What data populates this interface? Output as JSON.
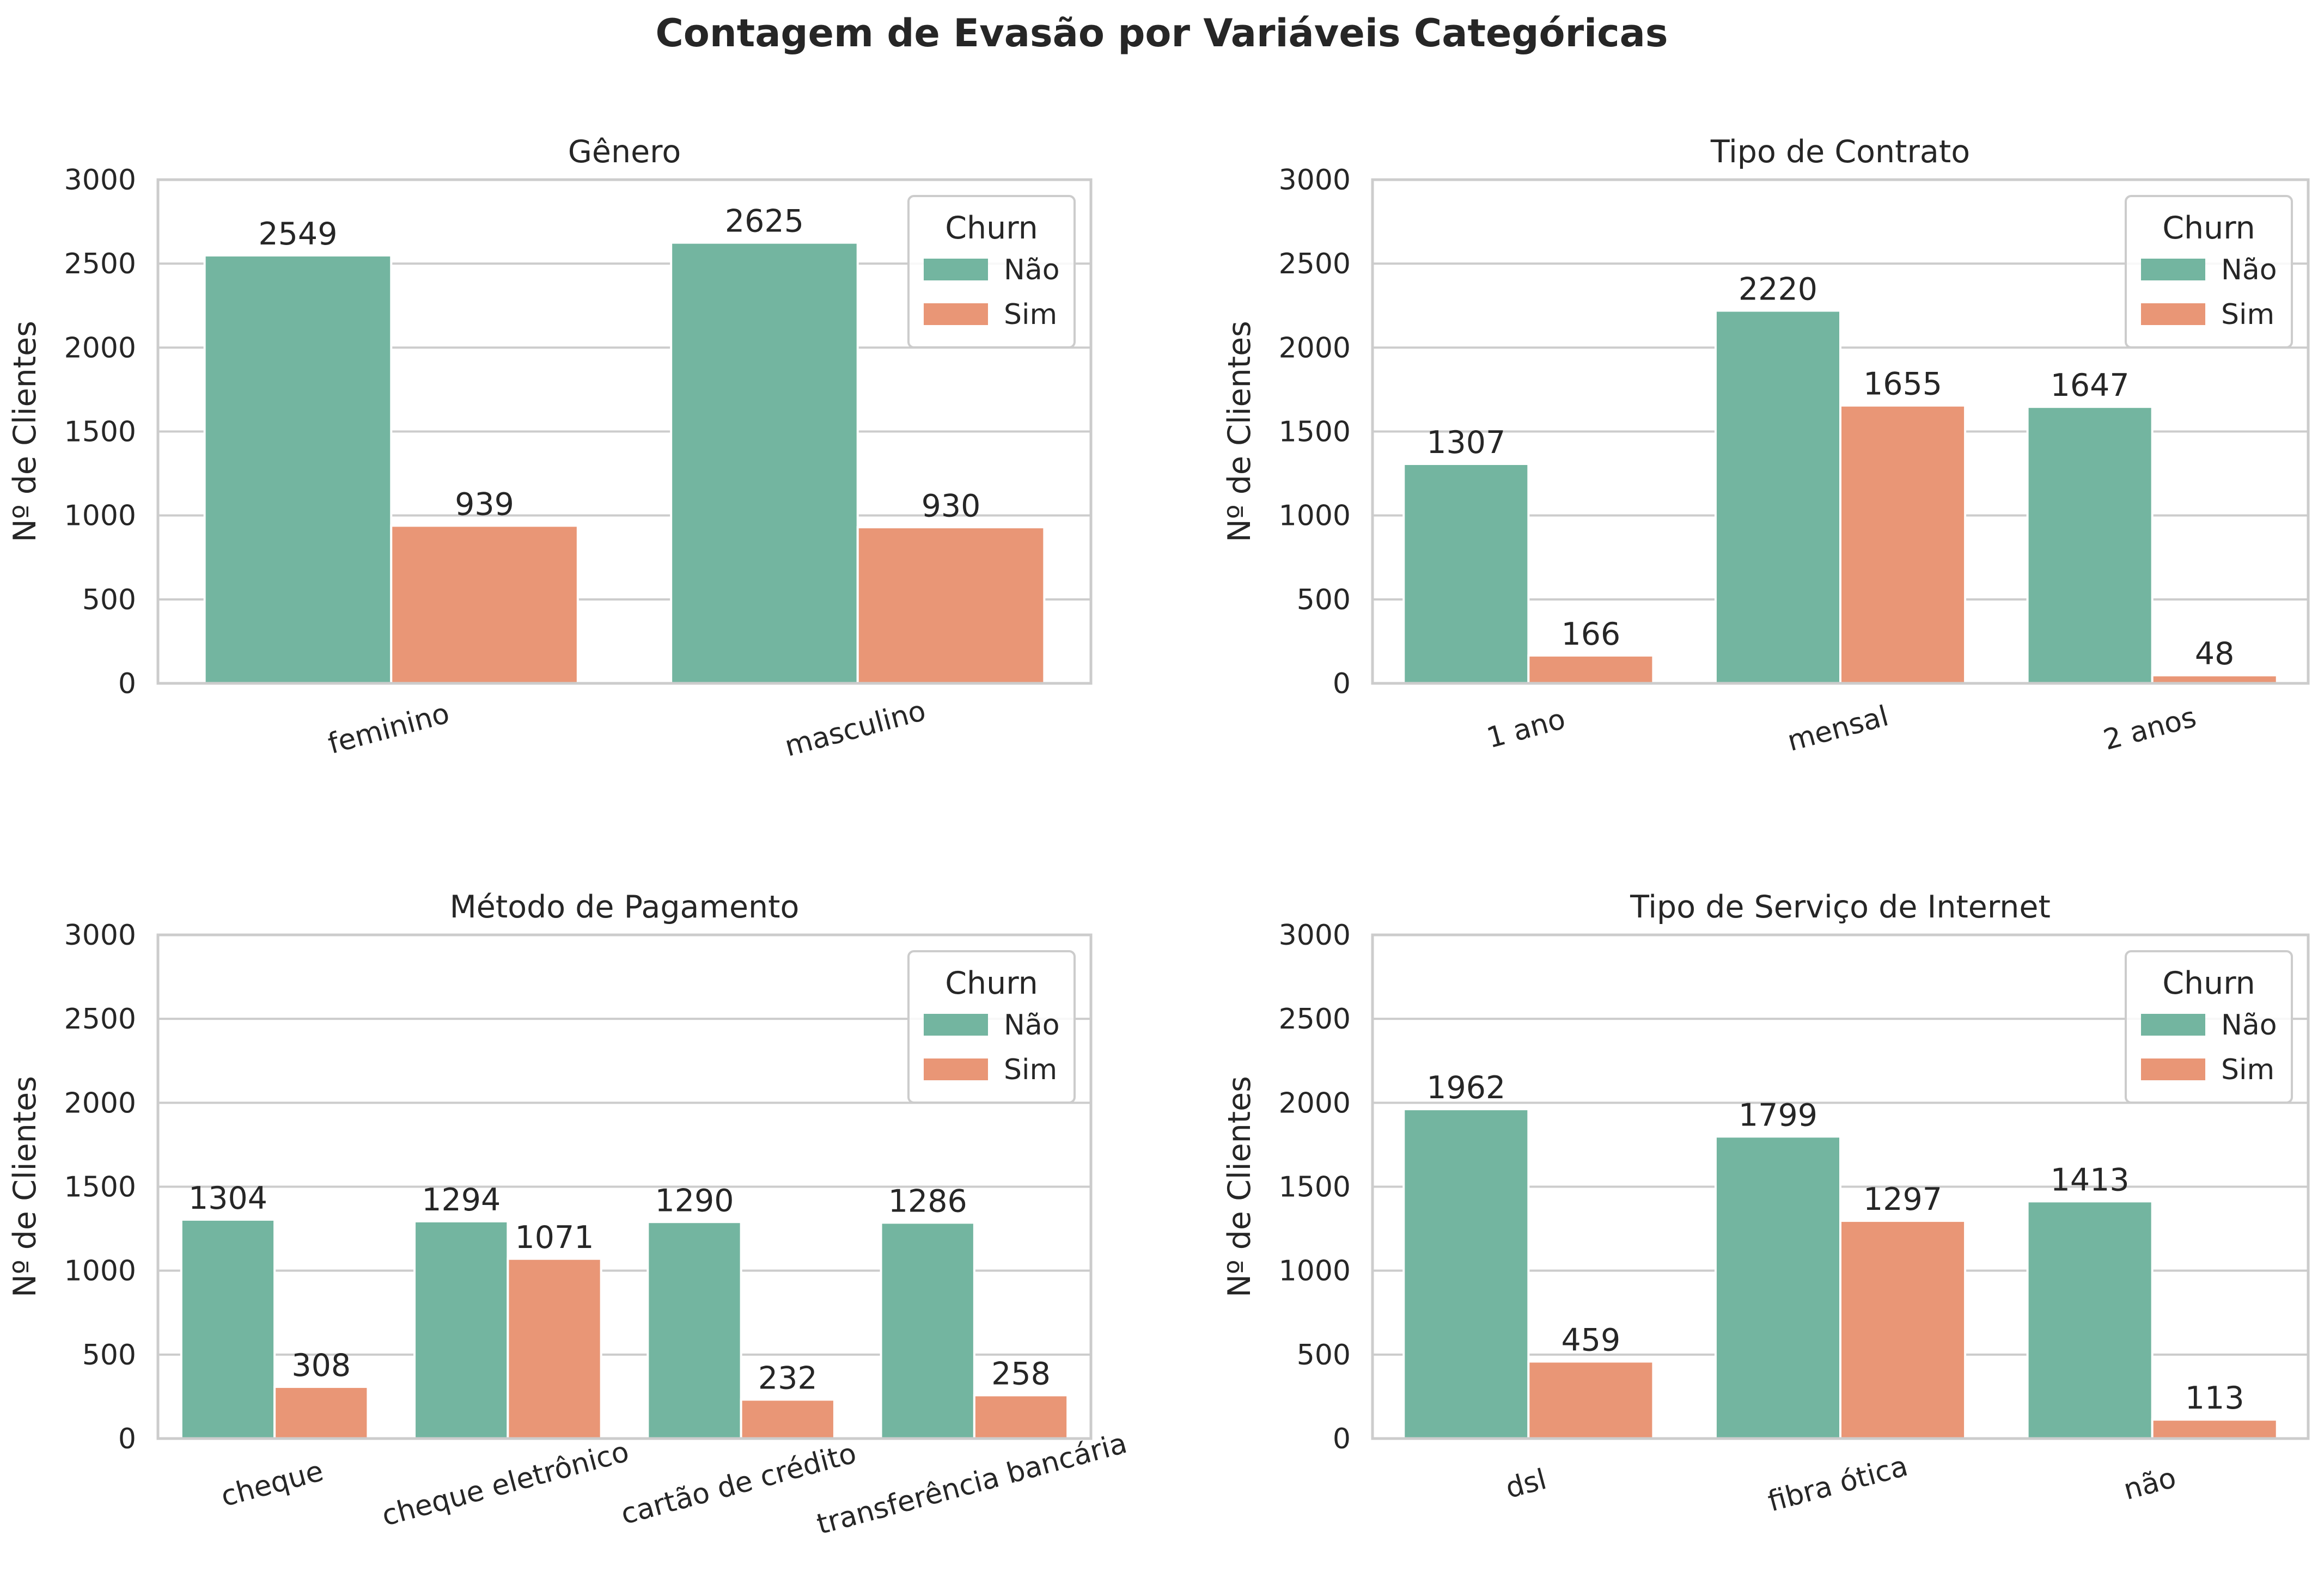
{
  "figure": {
    "title": "Contagem de Evasão por Variáveis Categóricas",
    "colors": {
      "Não": "#73b5a0",
      "Sim": "#e99676",
      "grid": "#cccccc",
      "text": "#262626"
    }
  },
  "chart_data": [
    {
      "type": "bar",
      "title": "Gênero",
      "xlabel": "",
      "ylabel": "Nº de Clientes",
      "ylim": [
        0,
        3000
      ],
      "yticks": [
        "0",
        "500",
        "1000",
        "1500",
        "2000",
        "2500",
        "3000"
      ],
      "categories": [
        "feminino",
        "masculino"
      ],
      "series": [
        {
          "name": "Não",
          "values": [
            2549,
            2625
          ]
        },
        {
          "name": "Sim",
          "values": [
            939,
            930
          ]
        }
      ],
      "legend": {
        "title": "Churn",
        "position": "top-right"
      },
      "grid": true
    },
    {
      "type": "bar",
      "title": "Tipo de Contrato",
      "xlabel": "",
      "ylabel": "Nº de Clientes",
      "ylim": [
        0,
        3000
      ],
      "yticks": [
        "0",
        "500",
        "1000",
        "1500",
        "2000",
        "2500",
        "3000"
      ],
      "categories": [
        "1 ano",
        "mensal",
        "2 anos"
      ],
      "series": [
        {
          "name": "Não",
          "values": [
            1307,
            2220,
            1647
          ]
        },
        {
          "name": "Sim",
          "values": [
            166,
            1655,
            48
          ]
        }
      ],
      "legend": {
        "title": "Churn",
        "position": "top-right"
      },
      "grid": true
    },
    {
      "type": "bar",
      "title": "Método de Pagamento",
      "xlabel": "",
      "ylabel": "Nº de Clientes",
      "ylim": [
        0,
        3000
      ],
      "yticks": [
        "0",
        "500",
        "1000",
        "1500",
        "2000",
        "2500",
        "3000"
      ],
      "categories": [
        "cheque",
        "cheque eletrônico",
        "cartão de crédito",
        "transferência bancária"
      ],
      "series": [
        {
          "name": "Não",
          "values": [
            1304,
            1294,
            1290,
            1286
          ]
        },
        {
          "name": "Sim",
          "values": [
            308,
            1071,
            232,
            258
          ]
        }
      ],
      "legend": {
        "title": "Churn",
        "position": "top-right"
      },
      "grid": true
    },
    {
      "type": "bar",
      "title": "Tipo de Serviço de Internet",
      "xlabel": "",
      "ylabel": "Nº de Clientes",
      "ylim": [
        0,
        3000
      ],
      "yticks": [
        "0",
        "500",
        "1000",
        "1500",
        "2000",
        "2500",
        "3000"
      ],
      "categories": [
        "dsl",
        "fibra ótica",
        "não"
      ],
      "series": [
        {
          "name": "Não",
          "values": [
            1962,
            1799,
            1413
          ]
        },
        {
          "name": "Sim",
          "values": [
            459,
            1297,
            113
          ]
        }
      ],
      "legend": {
        "title": "Churn",
        "position": "top-right"
      },
      "grid": true
    }
  ]
}
